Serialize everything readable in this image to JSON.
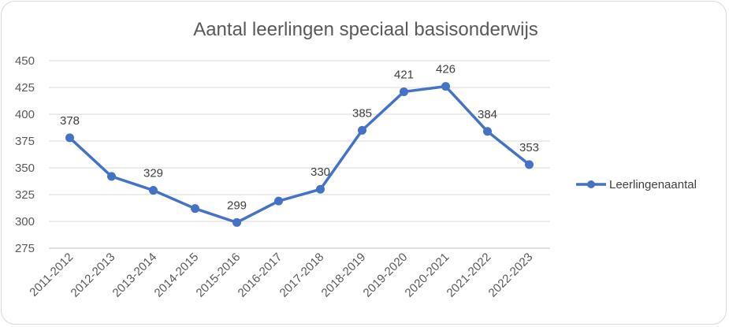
{
  "chart_data": {
    "type": "line",
    "title": "Aantal leerlingen speciaal basisonderwijs",
    "xlabel": "",
    "ylabel": "",
    "categories": [
      "2011-2012",
      "2012-2013",
      "2013-2014",
      "2014-2015",
      "2015-2016",
      "2016-2017",
      "2017-2018",
      "2018-2019",
      "2019-2020",
      "2020-2021",
      "2021-2022",
      "2022-2023"
    ],
    "series": [
      {
        "name": "Leerlingenaantal",
        "values": [
          378,
          342,
          329,
          312,
          299,
          319,
          330,
          385,
          421,
          426,
          384,
          353
        ],
        "labels": [
          "378",
          "",
          "329",
          "",
          "299",
          "",
          "330",
          "385",
          "421",
          "426",
          "384",
          "353"
        ],
        "color": "#4472c4"
      }
    ],
    "ylim": [
      275,
      450
    ],
    "yticks": [
      275,
      300,
      325,
      350,
      375,
      400,
      425,
      450
    ],
    "grid": true,
    "legend": "right"
  }
}
